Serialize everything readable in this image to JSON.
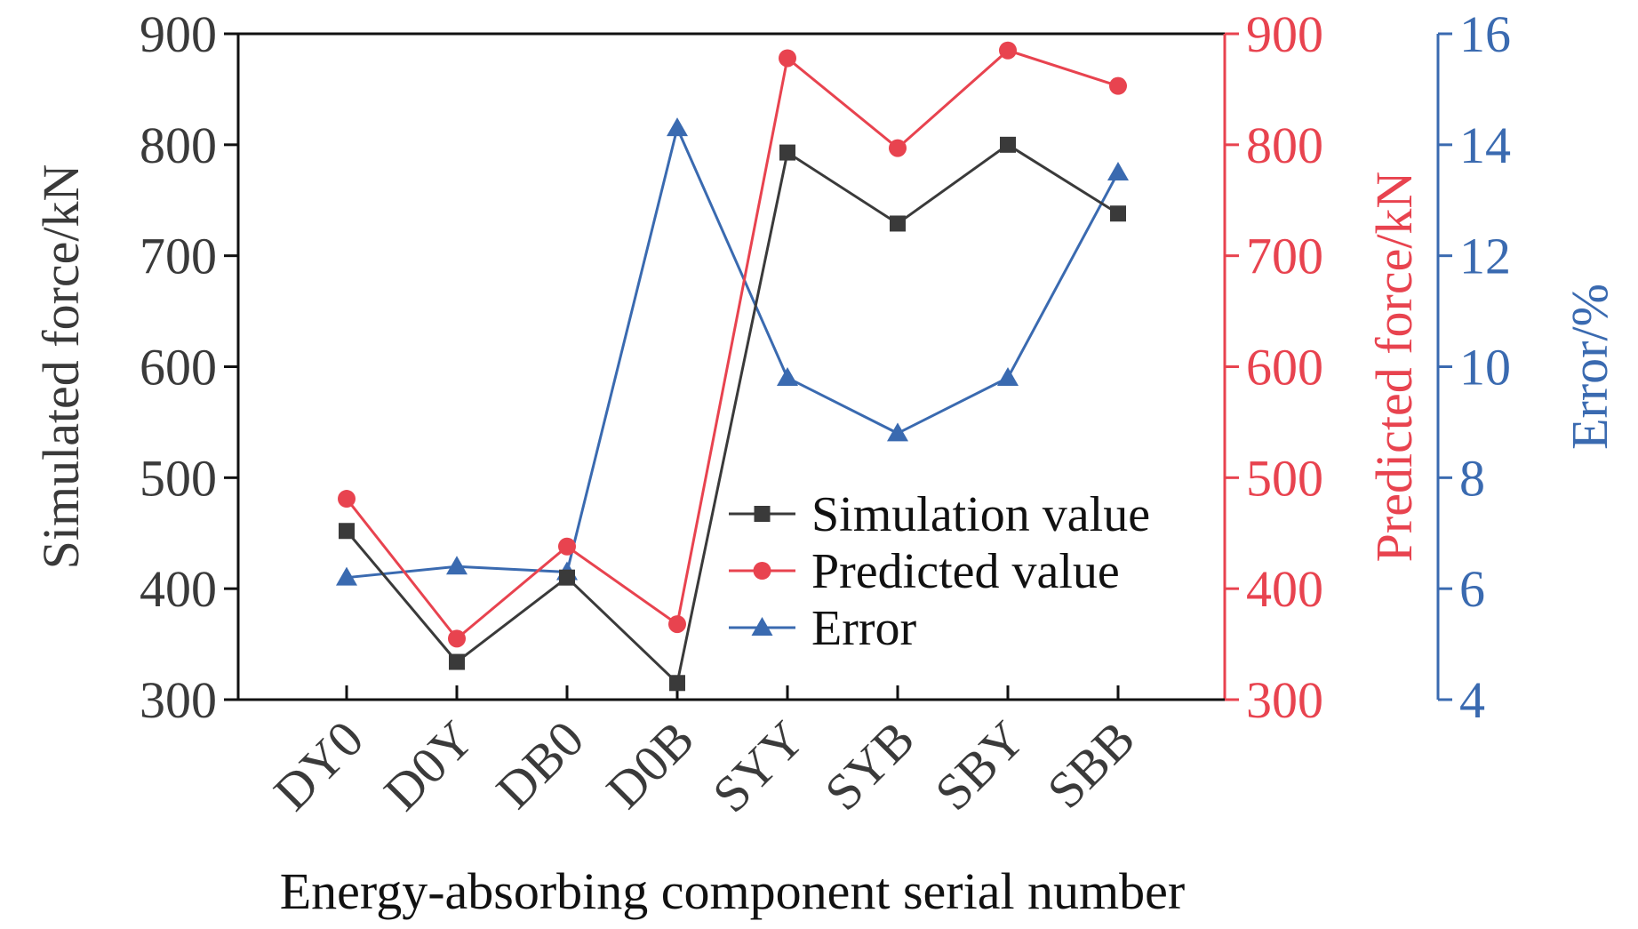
{
  "chart_data": {
    "type": "line",
    "title": "",
    "xlabel": "Energy-absorbing component serial number",
    "categories": [
      "DY0",
      "D0Y",
      "DB0",
      "D0B",
      "SYY",
      "SYB",
      "SBY",
      "SBB"
    ],
    "axes": {
      "left": {
        "label": "Simulated force/kN",
        "range": [
          300,
          900
        ],
        "ticks": [
          300,
          400,
          500,
          600,
          700,
          800,
          900
        ],
        "color": "#3a3a3a"
      },
      "right1": {
        "label": "Predicted force/kN",
        "range": [
          300,
          900
        ],
        "ticks": [
          300,
          400,
          500,
          600,
          700,
          800,
          900
        ],
        "color": "#e8434f"
      },
      "right2": {
        "label": "Error/%",
        "range": [
          4,
          16
        ],
        "ticks": [
          4,
          6,
          8,
          10,
          12,
          14,
          16
        ],
        "color": "#3a6ab0"
      }
    },
    "series": [
      {
        "name": "Simulation value",
        "axis": "left",
        "marker": "square",
        "color": "#3a3a3a",
        "values": [
          452,
          334,
          410,
          315,
          793,
          729,
          800,
          738
        ]
      },
      {
        "name": "Predicted value",
        "axis": "right1",
        "marker": "circle",
        "color": "#e8434f",
        "values": [
          481,
          355,
          438,
          368,
          878,
          797,
          885,
          853
        ]
      },
      {
        "name": "Error",
        "axis": "right2",
        "marker": "triangle",
        "color": "#3a6ab0",
        "values": [
          6.2,
          6.4,
          6.3,
          14.3,
          9.8,
          8.8,
          9.8,
          13.5
        ]
      }
    ],
    "legend": {
      "position": "center-right"
    },
    "grid": false
  }
}
